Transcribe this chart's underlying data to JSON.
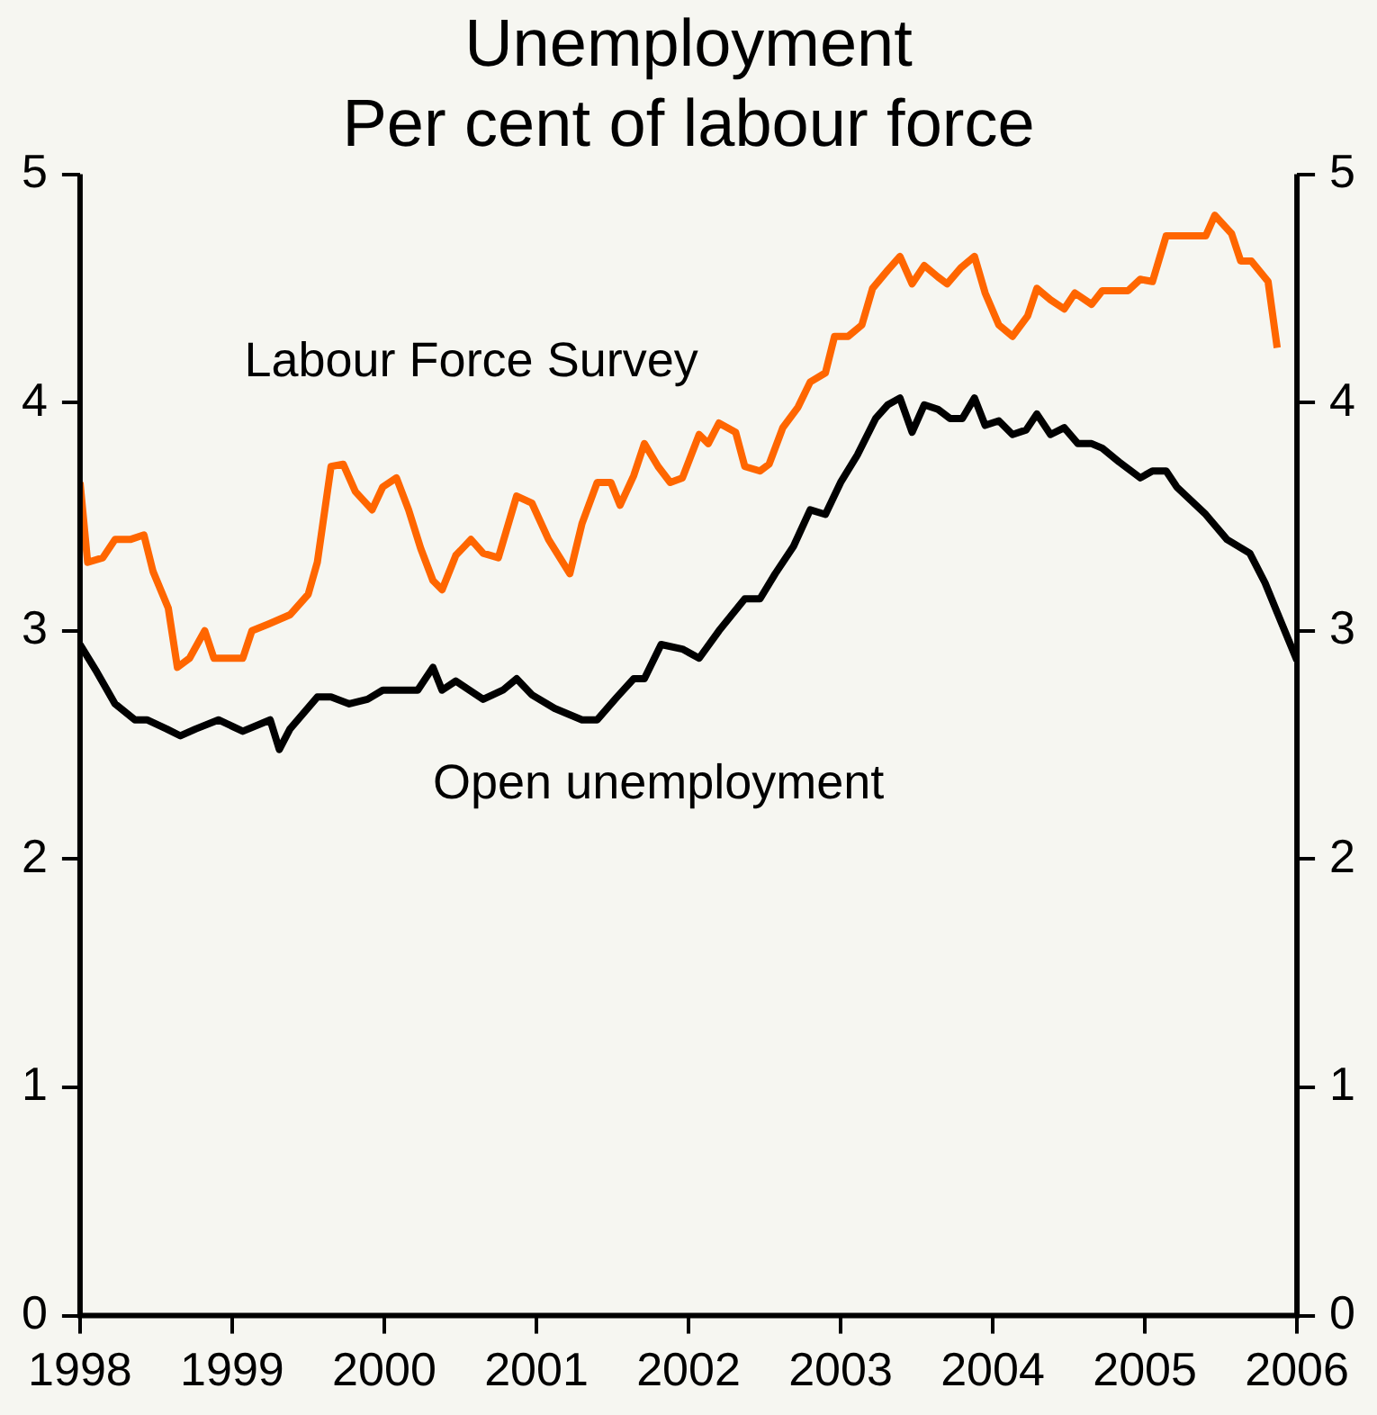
{
  "chart_data": {
    "type": "line",
    "title": "Unemployment",
    "subtitle": "Per cent of labour force",
    "xlim": [
      1998,
      2006
    ],
    "xticks": [
      1998,
      1999,
      2000,
      2001,
      2002,
      2003,
      2004,
      2005,
      2006
    ],
    "ylim": [
      0,
      5
    ],
    "yticks": [
      0,
      1,
      2,
      3,
      4,
      5
    ],
    "y2lim": [
      0,
      5
    ],
    "y2ticks": [
      0,
      1,
      2,
      3,
      4,
      5
    ],
    "grid": false,
    "legend": false,
    "series": [
      {
        "name": "Labour Force Survey",
        "color": "#ff6600",
        "x": [
          1998.0,
          1998.05,
          1998.15,
          1998.23,
          1998.33,
          1998.42,
          1998.48,
          1998.58,
          1998.64,
          1998.72,
          1998.82,
          1998.88,
          1999.07,
          1999.13,
          1999.24,
          1999.38,
          1999.5,
          1999.56,
          1999.65,
          1999.73,
          1999.81,
          1999.92,
          1999.99,
          2000.08,
          2000.16,
          2000.24,
          2000.32,
          2000.38,
          2000.47,
          2000.57,
          2000.65,
          2000.75,
          2000.87,
          2000.97,
          2001.08,
          2001.22,
          2001.3,
          2001.4,
          2001.49,
          2001.55,
          2001.64,
          2001.71,
          2001.8,
          2001.88,
          2001.96,
          2002.07,
          2002.13,
          2002.2,
          2002.31,
          2002.37,
          2002.47,
          2002.53,
          2002.62,
          2002.72,
          2002.8,
          2002.9,
          2002.96,
          2003.05,
          2003.14,
          2003.21,
          2003.31,
          2003.39,
          2003.47,
          2003.55,
          2003.64,
          2003.7,
          2003.79,
          2003.88,
          2003.95,
          2004.04,
          2004.13,
          2004.23,
          2004.29,
          2004.38,
          2004.47,
          2004.54,
          2004.65,
          2004.72,
          2004.89,
          2004.97,
          2005.05,
          2005.14,
          2005.4,
          2005.46,
          2005.57,
          2005.63,
          2005.7,
          2005.81,
          2005.87
        ],
        "values": [
          3.65,
          3.3,
          3.32,
          3.4,
          3.4,
          3.42,
          3.26,
          3.1,
          2.84,
          2.88,
          3.0,
          2.88,
          2.88,
          3.0,
          3.03,
          3.07,
          3.16,
          3.3,
          3.72,
          3.73,
          3.61,
          3.53,
          3.63,
          3.67,
          3.53,
          3.36,
          3.22,
          3.18,
          3.33,
          3.4,
          3.34,
          3.32,
          3.59,
          3.56,
          3.4,
          3.25,
          3.47,
          3.65,
          3.65,
          3.55,
          3.68,
          3.82,
          3.72,
          3.65,
          3.67,
          3.86,
          3.82,
          3.91,
          3.87,
          3.72,
          3.7,
          3.73,
          3.89,
          3.98,
          4.09,
          4.13,
          4.29,
          4.29,
          4.34,
          4.5,
          4.58,
          4.64,
          4.52,
          4.6,
          4.55,
          4.52,
          4.59,
          4.64,
          4.48,
          4.34,
          4.29,
          4.38,
          4.5,
          4.45,
          4.41,
          4.48,
          4.43,
          4.49,
          4.49,
          4.54,
          4.53,
          4.73,
          4.73,
          4.82,
          4.74,
          4.62,
          4.62,
          4.53,
          4.24
        ]
      },
      {
        "name": "Open unemployment",
        "color": "#000000",
        "x": [
          1998.0,
          1998.11,
          1998.23,
          1998.36,
          1998.44,
          1998.57,
          1998.66,
          1998.76,
          1998.91,
          1999.07,
          1999.25,
          1999.31,
          1999.38,
          1999.56,
          1999.65,
          1999.77,
          1999.89,
          1999.99,
          2000.22,
          2000.32,
          2000.38,
          2000.47,
          2000.65,
          2000.78,
          2000.87,
          2000.97,
          2001.12,
          2001.3,
          2001.4,
          2001.53,
          2001.64,
          2001.71,
          2001.82,
          2001.96,
          2002.07,
          2002.2,
          2002.37,
          2002.47,
          2002.57,
          2002.69,
          2002.8,
          2002.9,
          2003.0,
          2003.11,
          2003.23,
          2003.31,
          2003.39,
          2003.47,
          2003.55,
          2003.64,
          2003.72,
          2003.8,
          2003.88,
          2003.95,
          2004.04,
          2004.13,
          2004.22,
          2004.29,
          2004.38,
          2004.47,
          2004.56,
          2004.65,
          2004.72,
          2004.83,
          2004.97,
          2005.05,
          2005.14,
          2005.21,
          2005.4,
          2005.54,
          2005.69,
          2005.79,
          2005.87,
          2006.0
        ],
        "values": [
          2.94,
          2.82,
          2.68,
          2.61,
          2.61,
          2.57,
          2.54,
          2.57,
          2.61,
          2.56,
          2.61,
          2.48,
          2.57,
          2.71,
          2.71,
          2.68,
          2.7,
          2.74,
          2.74,
          2.84,
          2.74,
          2.78,
          2.7,
          2.74,
          2.79,
          2.72,
          2.66,
          2.61,
          2.61,
          2.71,
          2.79,
          2.79,
          2.94,
          2.92,
          2.88,
          3.0,
          3.14,
          3.14,
          3.25,
          3.37,
          3.53,
          3.51,
          3.65,
          3.77,
          3.93,
          3.99,
          4.02,
          3.87,
          3.99,
          3.97,
          3.93,
          3.93,
          4.02,
          3.9,
          3.92,
          3.86,
          3.88,
          3.95,
          3.86,
          3.89,
          3.82,
          3.82,
          3.8,
          3.74,
          3.67,
          3.7,
          3.7,
          3.63,
          3.51,
          3.4,
          3.34,
          3.21,
          3.08,
          2.87
        ]
      }
    ]
  }
}
